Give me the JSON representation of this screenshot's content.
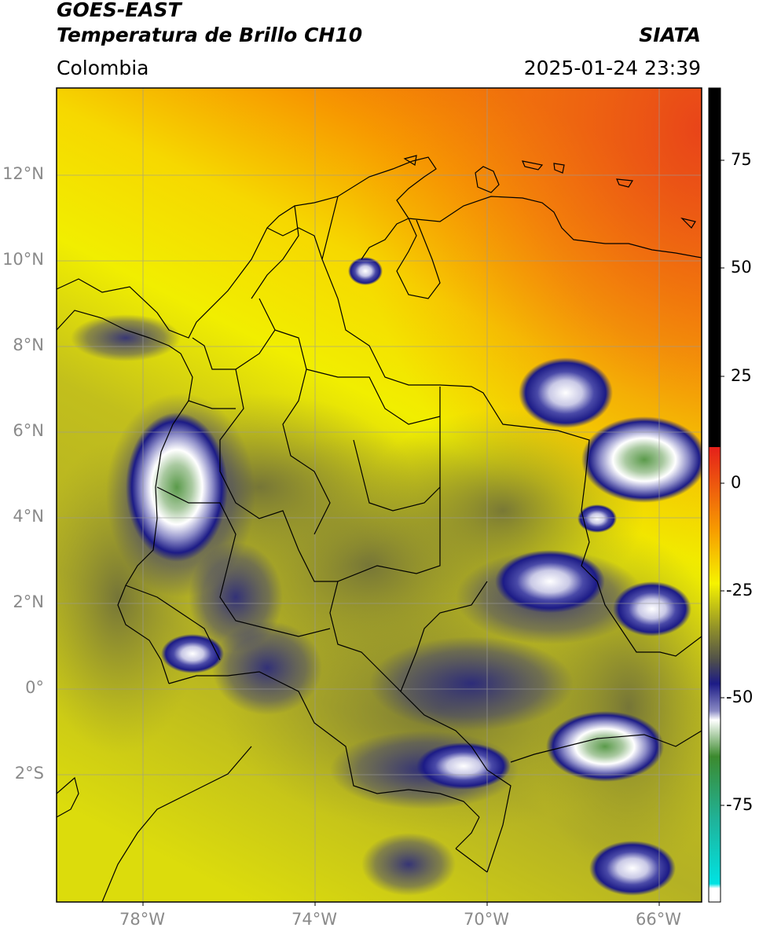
{
  "header": {
    "satellite": "GOES-EAST",
    "product": "Temperatura de Brillo CH10",
    "source": "SIATA",
    "region": "Colombia",
    "datetime": "2025-01-24 23:39"
  },
  "map": {
    "lon_range": [
      -80,
      -65
    ],
    "lat_range": [
      -5.0,
      14.0
    ],
    "lon_ticks": [
      "78°W",
      "74°W",
      "70°W",
      "66°W"
    ],
    "lat_ticks": [
      "12°N",
      "10°N",
      "8°N",
      "6°N",
      "4°N",
      "2°N",
      "0°",
      "2°S"
    ],
    "gridlines": true
  },
  "colorbar": {
    "ticks": [
      "75",
      "50",
      "25",
      "0",
      "-25",
      "-50",
      "-75"
    ],
    "colors": {
      "black": "#000000",
      "red": "#e5201a",
      "orange": "#f79a00",
      "yellow": "#f6f300",
      "olive": "#8f8f2a",
      "gray": "#4e4e4c",
      "navy": "#1c1b86",
      "white": "#ffffff",
      "green": "#3c8a2e",
      "teal": "#1fb39a",
      "cyan": "#00e3e3"
    }
  }
}
